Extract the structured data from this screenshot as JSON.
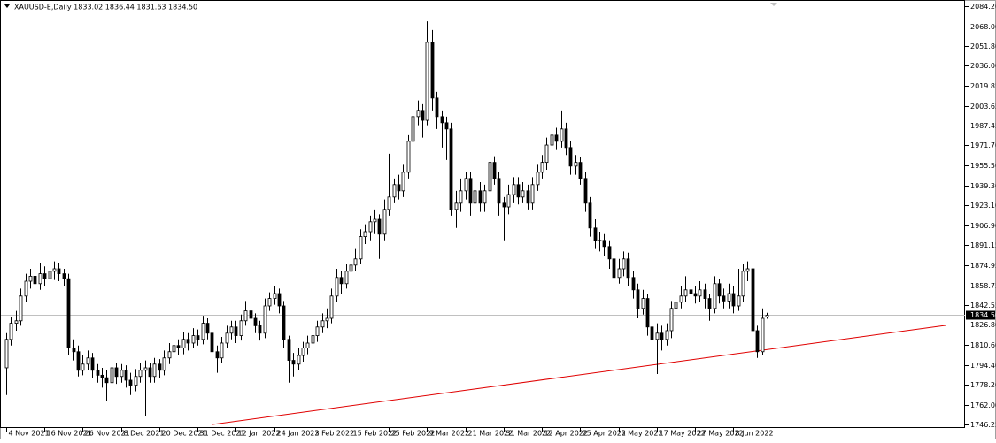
{
  "chart_data": {
    "type": "candlestick",
    "title": "XAUUSD-E,Daily  1833.02 1836.44 1831.63 1834.50",
    "categories": [
      "4 Nov 2021",
      null,
      null,
      null,
      null,
      null,
      null,
      null,
      "16 Nov 2021",
      null,
      null,
      null,
      null,
      null,
      null,
      null,
      "26 Nov 2021",
      null,
      null,
      null,
      null,
      null,
      null,
      null,
      "8 Dec 2021",
      null,
      null,
      null,
      null,
      null,
      null,
      null,
      "20 Dec 2021",
      null,
      null,
      null,
      null,
      null,
      null,
      null,
      "31 Dec 2021",
      null,
      null,
      null,
      null,
      null,
      null,
      null,
      "12 Jan 2022",
      null,
      null,
      null,
      null,
      null,
      null,
      null,
      "24 Jan 2022",
      null,
      null,
      null,
      null,
      null,
      null,
      null,
      "3 Feb 2022",
      null,
      null,
      null,
      null,
      null,
      null,
      null,
      "15 Feb 2022",
      null,
      null,
      null,
      null,
      null,
      null,
      null,
      "25 Feb 2022",
      null,
      null,
      null,
      null,
      null,
      null,
      null,
      "9 Mar 2022",
      null,
      null,
      null,
      null,
      null,
      null,
      null,
      "21 Mar 2022",
      null,
      null,
      null,
      null,
      null,
      null,
      null,
      "31 Mar 2022",
      null,
      null,
      null,
      null,
      null,
      null,
      null,
      "12 Apr 2022",
      null,
      null,
      null,
      null,
      null,
      null,
      null,
      "25 Apr 2022",
      null,
      null,
      null,
      null,
      null,
      null,
      null,
      "5 May 2022",
      null,
      null,
      null,
      null,
      null,
      null,
      null,
      "17 May 2022",
      null,
      null,
      null,
      null,
      null,
      null,
      null,
      "27 May 2022",
      null,
      null,
      null,
      null,
      null,
      null,
      null,
      "8 Jun 2022",
      null,
      null,
      null,
      null,
      null,
      null,
      null
    ],
    "open": [
      1792,
      1815,
      1828,
      1830,
      1850,
      1862,
      1866,
      1860,
      1868,
      1864,
      1870,
      1872,
      1868,
      1864,
      1808,
      1805,
      1790,
      1795,
      1800,
      1790,
      1786,
      1784,
      1780,
      1792,
      1785,
      1790,
      1782,
      1778,
      1785,
      1790,
      1792,
      1785,
      1795,
      1790,
      1800,
      1805,
      1810,
      1808,
      1815,
      1812,
      1818,
      1815,
      1828,
      1820,
      1805,
      1800,
      1812,
      1820,
      1825,
      1818,
      1830,
      1838,
      1832,
      1826,
      1820,
      1842,
      1848,
      1852,
      1842,
      1815,
      1798,
      1795,
      1802,
      1808,
      1812,
      1818,
      1825,
      1830,
      1832,
      1850,
      1865,
      1860,
      1870,
      1875,
      1880,
      1898,
      1902,
      1910,
      1912,
      1900,
      1920,
      1930,
      1940,
      1935,
      1950,
      1975,
      1995,
      2000,
      1992,
      2055,
      2010,
      1995,
      1990,
      1985,
      1920,
      1925,
      1935,
      1945,
      1925,
      1935,
      1925,
      1935,
      1958,
      1945,
      1925,
      1922,
      1932,
      1940,
      1930,
      1935,
      1925,
      1940,
      1950,
      1958,
      1972,
      1980,
      1975,
      1985,
      1970,
      1955,
      1958,
      1945,
      1925,
      1905,
      1895,
      1895,
      1890,
      1880,
      1865,
      1872,
      1880,
      1865,
      1855,
      1840,
      1848,
      1825,
      1815,
      1820,
      1815,
      1822,
      1840,
      1845,
      1850,
      1855,
      1852,
      1850,
      1855,
      1848,
      1840,
      1860,
      1850,
      1846,
      1852,
      1842,
      1850,
      1870,
      1872,
      1822,
      1805,
      1833.02
    ],
    "high": [
      1820,
      1833,
      1838,
      1856,
      1868,
      1872,
      1871,
      1877,
      1874,
      1876,
      1878,
      1877,
      1872,
      1868,
      1815,
      1810,
      1802,
      1806,
      1804,
      1795,
      1792,
      1790,
      1797,
      1796,
      1795,
      1794,
      1788,
      1791,
      1796,
      1798,
      1796,
      1800,
      1799,
      1806,
      1812,
      1816,
      1815,
      1821,
      1820,
      1824,
      1823,
      1834,
      1832,
      1824,
      1810,
      1817,
      1826,
      1830,
      1830,
      1835,
      1846,
      1845,
      1836,
      1830,
      1848,
      1853,
      1858,
      1856,
      1846,
      1818,
      1804,
      1808,
      1813,
      1818,
      1824,
      1830,
      1836,
      1840,
      1856,
      1872,
      1870,
      1876,
      1882,
      1888,
      1904,
      1908,
      1915,
      1920,
      1916,
      1928,
      1965,
      1945,
      1948,
      1956,
      1980,
      2002,
      2008,
      2005,
      2072,
      2065,
      2015,
      2000,
      1995,
      1990,
      1935,
      1945,
      1950,
      1950,
      1940,
      1942,
      1940,
      1966,
      1963,
      1950,
      1930,
      1940,
      1946,
      1946,
      1942,
      1940,
      1946,
      1956,
      1964,
      1978,
      1988,
      1986,
      2000,
      1990,
      1975,
      1964,
      1962,
      1950,
      1930,
      1912,
      1902,
      1900,
      1895,
      1884,
      1880,
      1886,
      1885,
      1870,
      1860,
      1855,
      1852,
      1830,
      1828,
      1826,
      1828,
      1846,
      1852,
      1858,
      1866,
      1862,
      1858,
      1862,
      1860,
      1852,
      1866,
      1864,
      1856,
      1860,
      1858,
      1872,
      1876,
      1878,
      1876,
      1826,
      1840,
      1836.44
    ],
    "low": [
      1770,
      1810,
      1822,
      1826,
      1845,
      1856,
      1854,
      1855,
      1858,
      1860,
      1863,
      1862,
      1858,
      1802,
      1798,
      1785,
      1786,
      1790,
      1784,
      1780,
      1776,
      1765,
      1775,
      1779,
      1780,
      1776,
      1770,
      1773,
      1780,
      1753,
      1780,
      1780,
      1784,
      1786,
      1795,
      1800,
      1802,
      1803,
      1806,
      1808,
      1810,
      1811,
      1815,
      1800,
      1788,
      1796,
      1808,
      1815,
      1812,
      1814,
      1826,
      1827,
      1820,
      1814,
      1816,
      1838,
      1843,
      1836,
      1808,
      1780,
      1785,
      1790,
      1797,
      1803,
      1807,
      1813,
      1820,
      1824,
      1828,
      1845,
      1852,
      1856,
      1865,
      1870,
      1876,
      1892,
      1895,
      1900,
      1880,
      1895,
      1915,
      1925,
      1928,
      1930,
      1945,
      1970,
      1988,
      1978,
      1988,
      2000,
      1985,
      1970,
      1960,
      1915,
      1905,
      1918,
      1928,
      1915,
      1920,
      1918,
      1918,
      1930,
      1940,
      1915,
      1895,
      1916,
      1925,
      1924,
      1925,
      1920,
      1920,
      1935,
      1945,
      1952,
      1966,
      1968,
      1970,
      1964,
      1948,
      1948,
      1940,
      1918,
      1898,
      1888,
      1886,
      1882,
      1872,
      1858,
      1860,
      1866,
      1858,
      1848,
      1832,
      1835,
      1818,
      1808,
      1787,
      1806,
      1810,
      1816,
      1835,
      1840,
      1845,
      1846,
      1844,
      1845,
      1840,
      1830,
      1836,
      1844,
      1840,
      1840,
      1836,
      1838,
      1845,
      1862,
      1816,
      1800,
      1802,
      1831.63
    ],
    "close": [
      1815,
      1828,
      1830,
      1850,
      1862,
      1866,
      1860,
      1868,
      1864,
      1870,
      1872,
      1868,
      1864,
      1808,
      1805,
      1790,
      1795,
      1800,
      1790,
      1786,
      1784,
      1780,
      1792,
      1785,
      1790,
      1782,
      1778,
      1785,
      1790,
      1792,
      1785,
      1795,
      1790,
      1800,
      1805,
      1810,
      1808,
      1815,
      1812,
      1818,
      1815,
      1828,
      1820,
      1805,
      1800,
      1812,
      1820,
      1825,
      1818,
      1830,
      1838,
      1832,
      1826,
      1820,
      1842,
      1848,
      1852,
      1842,
      1815,
      1798,
      1795,
      1802,
      1808,
      1812,
      1818,
      1825,
      1830,
      1832,
      1850,
      1865,
      1860,
      1870,
      1875,
      1880,
      1898,
      1902,
      1910,
      1912,
      1900,
      1920,
      1930,
      1940,
      1935,
      1950,
      1975,
      1995,
      2000,
      1992,
      2055,
      2010,
      1995,
      1990,
      1985,
      1920,
      1925,
      1935,
      1945,
      1925,
      1935,
      1925,
      1935,
      1958,
      1945,
      1925,
      1922,
      1932,
      1940,
      1930,
      1935,
      1925,
      1940,
      1950,
      1958,
      1972,
      1980,
      1975,
      1985,
      1970,
      1955,
      1958,
      1945,
      1925,
      1905,
      1895,
      1895,
      1890,
      1880,
      1865,
      1872,
      1880,
      1865,
      1855,
      1840,
      1848,
      1825,
      1815,
      1820,
      1815,
      1822,
      1840,
      1845,
      1850,
      1855,
      1852,
      1850,
      1855,
      1848,
      1840,
      1860,
      1850,
      1846,
      1852,
      1842,
      1850,
      1870,
      1872,
      1822,
      1805,
      1832,
      1834.5
    ],
    "ylim": [
      1746.25,
      2084.2
    ],
    "yticks": [
      {
        "value": 2084.2,
        "label": "2084.20"
      },
      {
        "value": 2068,
        "label": "2068.00"
      },
      {
        "value": 2051.8,
        "label": "2051.80"
      },
      {
        "value": 2036,
        "label": "2036.00"
      },
      {
        "value": 2019.85,
        "label": "2019.85"
      },
      {
        "value": 2003.65,
        "label": "2003.65"
      },
      {
        "value": 1987.45,
        "label": "1987.45"
      },
      {
        "value": 1971.7,
        "label": "1971.70"
      },
      {
        "value": 1955.5,
        "label": "1955.50"
      },
      {
        "value": 1939.3,
        "label": "1939.30"
      },
      {
        "value": 1923.1,
        "label": "1923.10"
      },
      {
        "value": 1906.9,
        "label": "1906.90"
      },
      {
        "value": 1891.15,
        "label": "1891.15"
      },
      {
        "value": 1874.95,
        "label": "1874.95"
      },
      {
        "value": 1858.75,
        "label": "1858.75"
      },
      {
        "value": 1842.55,
        "label": "1842.55"
      },
      {
        "value": 1826.8,
        "label": "1826.80"
      },
      {
        "value": 1810.6,
        "label": "1810.60"
      },
      {
        "value": 1794.4,
        "label": "1794.40"
      },
      {
        "value": 1778.2,
        "label": "1778.20"
      },
      {
        "value": 1762,
        "label": "1762.00"
      },
      {
        "value": 1746.25,
        "label": "1746.25"
      }
    ],
    "last_price": {
      "value": 1834.5,
      "label": "1834.50"
    },
    "up_color": "#ffffff",
    "down_color": "#000000"
  }
}
